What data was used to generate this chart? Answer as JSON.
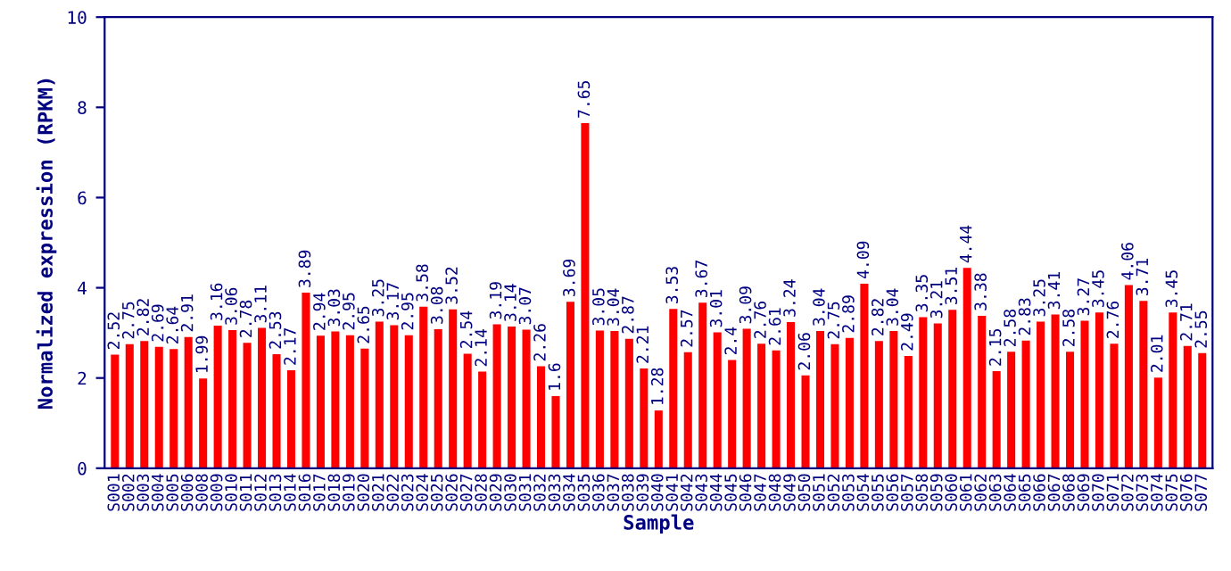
{
  "chart_data": {
    "type": "bar",
    "xlabel": "Sample",
    "ylabel": "Normalized expression (RPKM)",
    "categories": [
      "S001",
      "S002",
      "S003",
      "S004",
      "S005",
      "S006",
      "S008",
      "S009",
      "S010",
      "S011",
      "S012",
      "S013",
      "S014",
      "S016",
      "S017",
      "S018",
      "S019",
      "S020",
      "S021",
      "S022",
      "S023",
      "S024",
      "S025",
      "S026",
      "S027",
      "S028",
      "S029",
      "S030",
      "S031",
      "S032",
      "S033",
      "S034",
      "S035",
      "S036",
      "S037",
      "S038",
      "S039",
      "S040",
      "S041",
      "S042",
      "S043",
      "S044",
      "S045",
      "S046",
      "S047",
      "S048",
      "S049",
      "S050",
      "S051",
      "S052",
      "S053",
      "S054",
      "S055",
      "S056",
      "S057",
      "S058",
      "S059",
      "S060",
      "S061",
      "S062",
      "S063",
      "S064",
      "S065",
      "S066",
      "S067",
      "S068",
      "S069",
      "S070",
      "S071",
      "S072",
      "S073",
      "S074",
      "S075",
      "S076",
      "S077"
    ],
    "values": [
      2.52,
      2.75,
      2.82,
      2.69,
      2.64,
      2.91,
      1.99,
      3.16,
      3.06,
      2.78,
      3.11,
      2.53,
      2.17,
      3.89,
      2.94,
      3.03,
      2.95,
      2.65,
      3.25,
      3.17,
      2.95,
      3.58,
      3.08,
      3.52,
      2.54,
      2.14,
      3.19,
      3.14,
      3.07,
      2.26,
      1.6,
      3.69,
      7.65,
      3.05,
      3.04,
      2.87,
      2.21,
      1.28,
      3.53,
      2.57,
      3.67,
      3.01,
      2.4,
      3.09,
      2.76,
      2.61,
      3.24,
      2.06,
      3.04,
      2.75,
      2.89,
      4.09,
      2.82,
      3.04,
      2.49,
      3.35,
      3.21,
      3.51,
      4.44,
      3.38,
      2.15,
      2.58,
      2.83,
      3.25,
      3.41,
      2.58,
      3.27,
      3.45,
      2.76,
      4.06,
      3.71,
      2.01,
      3.45,
      2.71,
      2.55
    ],
    "color": "#ff0000",
    "ylim": [
      0,
      10
    ],
    "yticks": [
      0,
      2,
      4,
      6,
      8,
      10
    ],
    "data_labels": true,
    "grid": false,
    "legend": false
  }
}
